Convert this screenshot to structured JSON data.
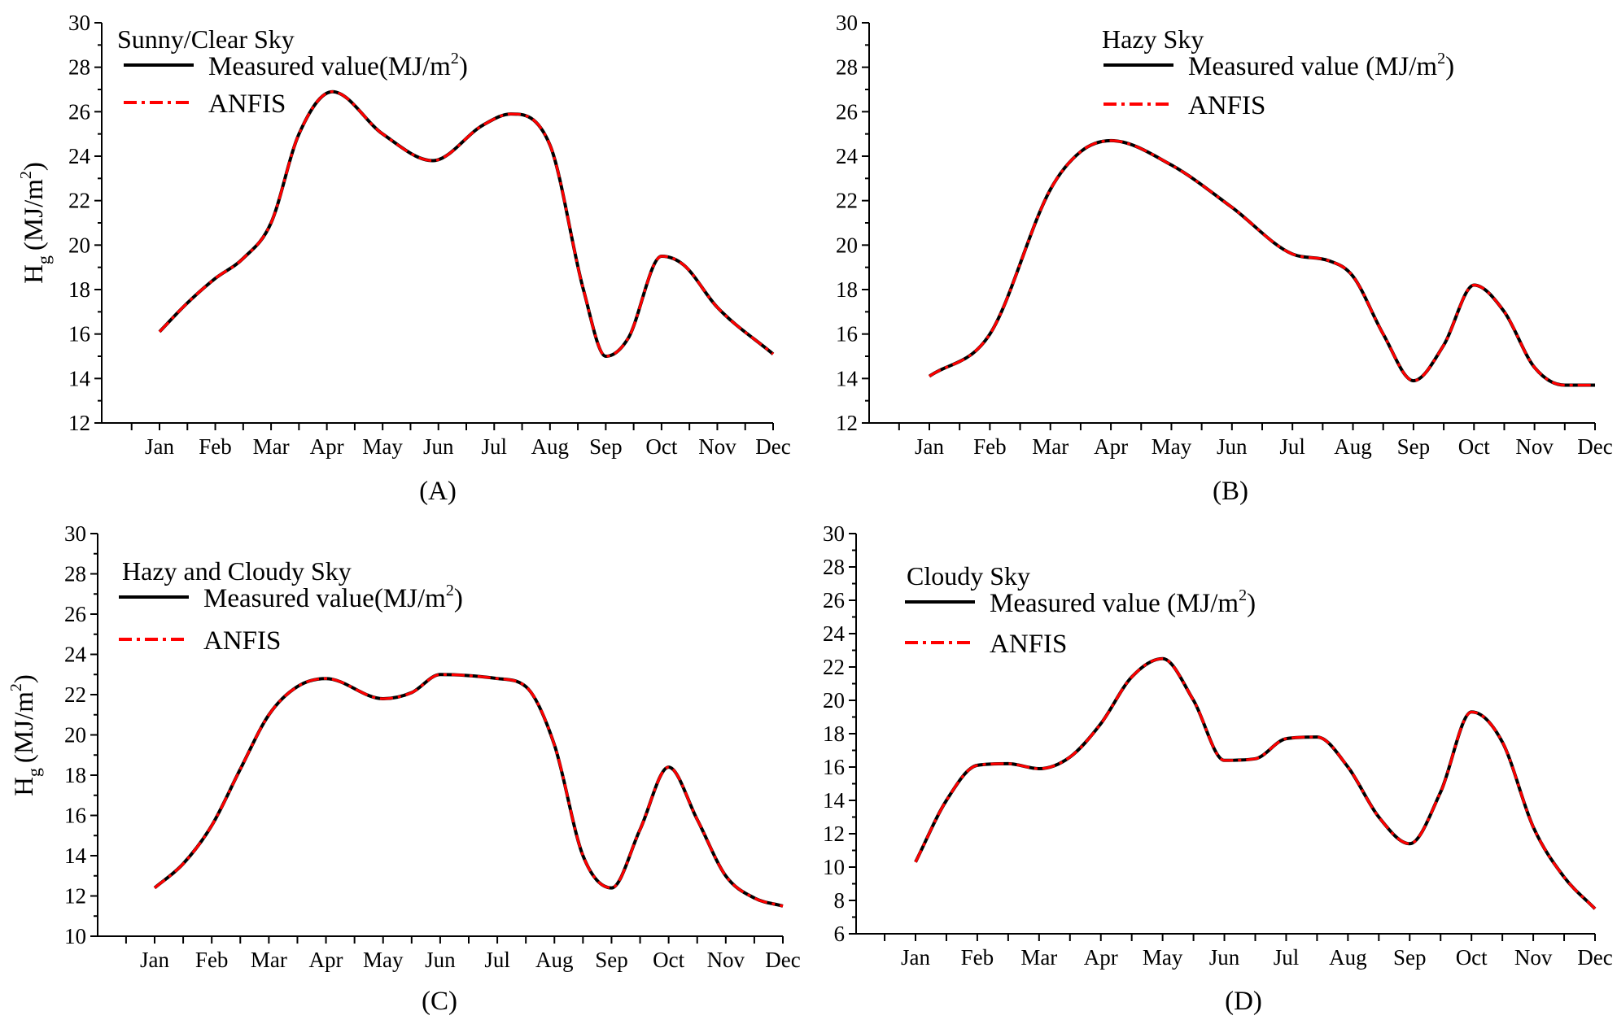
{
  "figure": {
    "x_categories": [
      "Jan",
      "Feb",
      "Mar",
      "Apr",
      "May",
      "Jun",
      "Jul",
      "Aug",
      "Sep",
      "Oct",
      "Nov",
      "Dec"
    ],
    "colors": {
      "measured": "#000000",
      "anfis": "#ff0000",
      "axis": "#000000"
    }
  },
  "chart_data": [
    {
      "type": "line",
      "panel_label": "(A)",
      "title": "Sunny/Clear Sky",
      "ylabel_main": "H",
      "ylabel_sub": "g",
      "ylabel_unit": "(MJ/m",
      "ylabel_sup": "2",
      "ylabel_close": ")",
      "ylim": [
        12,
        30
      ],
      "yticks": [
        "12",
        "14",
        "16",
        "18",
        "20",
        "22",
        "24",
        "26",
        "28",
        "30"
      ],
      "categories": [
        "Jan",
        "Feb",
        "Mar",
        "Apr",
        "May",
        "Jun",
        "Jul",
        "Aug",
        "Sep",
        "Oct",
        "Nov",
        "Dec"
      ],
      "legend": {
        "measured_text": "Measured value(MJ/m",
        "measured_sup": "2",
        "measured_close": ")",
        "anfis_text": "ANFIS"
      },
      "series": [
        {
          "name": "Measured value(MJ/m2)",
          "style": "solid",
          "color": "#000000",
          "x": [
            1,
            1.5,
            2,
            2.5,
            3,
            3.5,
            4.1,
            5,
            5.9,
            6.8,
            7.3,
            8,
            8.6,
            9,
            9.4,
            10,
            10.4,
            11,
            12
          ],
          "y": [
            16.1,
            17.4,
            18.5,
            19.4,
            21.0,
            25.0,
            26.9,
            25.0,
            23.8,
            25.4,
            25.9,
            24.5,
            18.0,
            15.0,
            15.8,
            19.5,
            19.1,
            17.2,
            15.1
          ]
        },
        {
          "name": "ANFIS",
          "style": "dashdot",
          "color": "#ff0000",
          "x": [
            1,
            1.5,
            2,
            2.5,
            3,
            3.5,
            4.1,
            5,
            5.9,
            6.8,
            7.3,
            8,
            8.6,
            9,
            9.4,
            10,
            10.4,
            11,
            12
          ],
          "y": [
            16.1,
            17.4,
            18.5,
            19.4,
            21.0,
            25.0,
            26.9,
            25.0,
            23.8,
            25.4,
            25.9,
            24.5,
            18.0,
            15.0,
            15.8,
            19.5,
            19.1,
            17.2,
            15.1
          ]
        }
      ]
    },
    {
      "type": "line",
      "panel_label": "(B)",
      "title": "Hazy Sky",
      "ylabel_main": "",
      "ylabel_sub": "",
      "ylabel_unit": "",
      "ylabel_sup": "",
      "ylabel_close": "",
      "ylim": [
        12,
        30
      ],
      "yticks": [
        "12",
        "14",
        "16",
        "18",
        "20",
        "22",
        "24",
        "26",
        "28",
        "30"
      ],
      "categories": [
        "Jan",
        "Feb",
        "Mar",
        "Apr",
        "May",
        "Jun",
        "Jul",
        "Aug",
        "Sep",
        "Oct",
        "Nov",
        "Dec"
      ],
      "legend": {
        "measured_text": "Measured value (MJ/m",
        "measured_sup": "2",
        "measured_close": ")",
        "anfis_text": "ANFIS"
      },
      "series": [
        {
          "name": "Measured value (MJ/m2)",
          "style": "solid",
          "color": "#000000",
          "x": [
            1,
            2,
            3,
            3.5,
            4,
            5,
            6,
            7,
            7.6,
            8,
            8.5,
            9,
            9.5,
            10,
            10.5,
            11,
            11.5,
            12
          ],
          "y": [
            14.1,
            16.0,
            22.5,
            24.2,
            24.7,
            23.6,
            21.7,
            19.6,
            19.3,
            18.6,
            16.0,
            13.9,
            15.5,
            18.2,
            17.0,
            14.5,
            13.7,
            13.7
          ]
        },
        {
          "name": "ANFIS",
          "style": "dashdot",
          "color": "#ff0000",
          "x": [
            1,
            2,
            3,
            3.5,
            4,
            5,
            6,
            7,
            7.6,
            8,
            8.5,
            9,
            9.5,
            10,
            10.5,
            11,
            11.5,
            12
          ],
          "y": [
            14.1,
            16.0,
            22.5,
            24.2,
            24.7,
            23.6,
            21.7,
            19.6,
            19.3,
            18.6,
            16.0,
            13.9,
            15.5,
            18.2,
            17.0,
            14.5,
            13.7,
            13.7
          ]
        }
      ]
    },
    {
      "type": "line",
      "panel_label": "(C)",
      "title": "Hazy and Cloudy Sky",
      "ylabel_main": "H",
      "ylabel_sub": "g",
      "ylabel_unit": "(MJ/m",
      "ylabel_sup": "2",
      "ylabel_close": ")",
      "ylim": [
        10,
        30
      ],
      "yticks": [
        "10",
        "12",
        "14",
        "16",
        "18",
        "20",
        "22",
        "24",
        "26",
        "28",
        "30"
      ],
      "categories": [
        "Jan",
        "Feb",
        "Mar",
        "Apr",
        "May",
        "Jun",
        "Jul",
        "Aug",
        "Sep",
        "Oct",
        "Nov",
        "Dec"
      ],
      "legend": {
        "measured_text": "Measured value(MJ/m",
        "measured_sup": "2",
        "measured_close": ")",
        "anfis_text": "ANFIS"
      },
      "series": [
        {
          "name": "Measured value(MJ/m2)",
          "style": "solid",
          "color": "#000000",
          "x": [
            1,
            1.5,
            2,
            2.5,
            3,
            3.5,
            4,
            5,
            5.5,
            6,
            7,
            7.5,
            8,
            8.5,
            9,
            9.5,
            10,
            10.5,
            11,
            11.5,
            12
          ],
          "y": [
            12.4,
            13.6,
            15.5,
            18.3,
            21.0,
            22.4,
            22.8,
            21.8,
            22.1,
            23.0,
            22.8,
            22.4,
            19.5,
            14.0,
            12.4,
            15.3,
            18.4,
            15.8,
            13.0,
            11.9,
            11.5
          ]
        },
        {
          "name": "ANFIS",
          "style": "dashdot",
          "color": "#ff0000",
          "x": [
            1,
            1.5,
            2,
            2.5,
            3,
            3.5,
            4,
            5,
            5.5,
            6,
            7,
            7.5,
            8,
            8.5,
            9,
            9.5,
            10,
            10.5,
            11,
            11.5,
            12
          ],
          "y": [
            12.4,
            13.6,
            15.5,
            18.3,
            21.0,
            22.4,
            22.8,
            21.8,
            22.1,
            23.0,
            22.8,
            22.4,
            19.5,
            14.0,
            12.4,
            15.3,
            18.4,
            15.8,
            13.0,
            11.9,
            11.5
          ]
        }
      ]
    },
    {
      "type": "line",
      "panel_label": "(D)",
      "title": "Cloudy Sky",
      "ylabel_main": "",
      "ylabel_sub": "",
      "ylabel_unit": "",
      "ylabel_sup": "",
      "ylabel_close": "",
      "ylim": [
        6,
        30
      ],
      "yticks": [
        "6",
        "8",
        "10",
        "12",
        "14",
        "16",
        "18",
        "20",
        "22",
        "24",
        "26",
        "28",
        "30"
      ],
      "categories": [
        "Jan",
        "Feb",
        "Mar",
        "Apr",
        "May",
        "Jun",
        "Jul",
        "Aug",
        "Sep",
        "Oct",
        "Nov",
        "Dec"
      ],
      "legend": {
        "measured_text": "Measured value (MJ/m",
        "measured_sup": "2",
        "measured_close": ")",
        "anfis_text": "ANFIS"
      },
      "series": [
        {
          "name": "Measured value (MJ/m2)",
          "style": "solid",
          "color": "#000000",
          "x": [
            1,
            1.5,
            2,
            2.5,
            3,
            3.5,
            4,
            4.5,
            5,
            5.5,
            6,
            6.5,
            7,
            7.5,
            8,
            8.5,
            9,
            9.5,
            10,
            10.5,
            11,
            11.5,
            12
          ],
          "y": [
            10.3,
            14.0,
            16.1,
            16.2,
            15.9,
            16.6,
            18.6,
            21.4,
            22.5,
            20.0,
            16.4,
            16.5,
            17.7,
            17.8,
            16.0,
            13.0,
            11.4,
            14.5,
            19.3,
            17.5,
            12.4,
            9.4,
            7.5
          ]
        },
        {
          "name": "ANFIS",
          "style": "dashdot",
          "color": "#ff0000",
          "x": [
            1,
            1.5,
            2,
            2.5,
            3,
            3.5,
            4,
            4.5,
            5,
            5.5,
            6,
            6.5,
            7,
            7.5,
            8,
            8.5,
            9,
            9.5,
            10,
            10.5,
            11,
            11.5,
            12
          ],
          "y": [
            10.3,
            14.0,
            16.1,
            16.2,
            15.9,
            16.6,
            18.6,
            21.4,
            22.5,
            20.0,
            16.4,
            16.5,
            17.7,
            17.8,
            16.0,
            13.0,
            11.4,
            14.5,
            19.3,
            17.5,
            12.4,
            9.4,
            7.5
          ]
        }
      ]
    }
  ]
}
